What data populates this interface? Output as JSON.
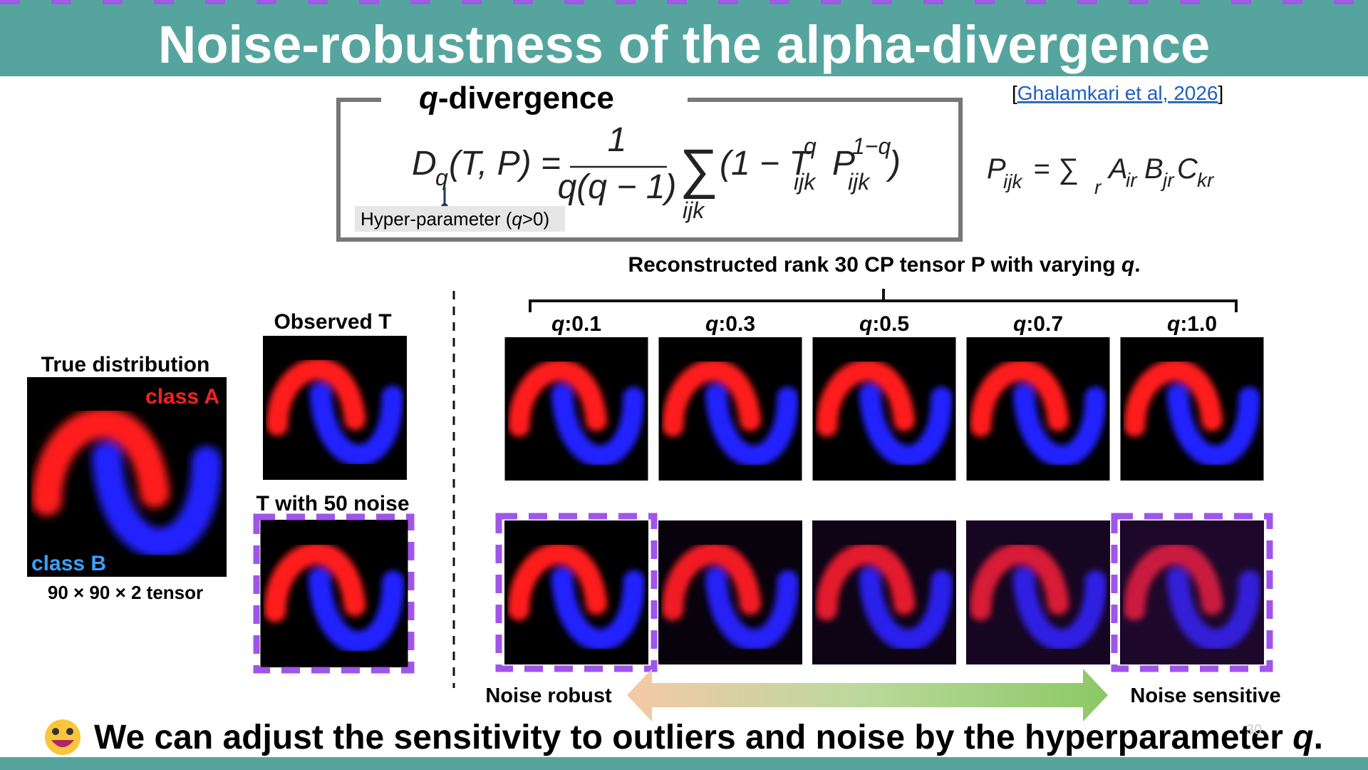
{
  "header": {
    "title": "Noise-robustness of the alpha-divergence"
  },
  "citation": {
    "open": "[",
    "text": "Ghalamkari et al, 2026",
    "close": "]"
  },
  "heading": {
    "var": "q",
    "rest": "-divergence"
  },
  "formula": {
    "lhs": [
      "D",
      "q",
      "(T, P) ="
    ],
    "numerator": "1",
    "denominator": "q(q − 1)",
    "sum": "∑",
    "sum_index": "ijk",
    "body": [
      "(1 − T",
      "q",
      "ijk",
      "P",
      "1−q",
      "ijk",
      ")"
    ]
  },
  "cp_formula": [
    "P",
    "ijk",
    "= ∑",
    "r",
    "A",
    "ir",
    "B",
    "jr",
    "C",
    "kr"
  ],
  "hyper_parameter": {
    "prefix": "Hyper-parameter (",
    "var": "q",
    "suffix": ">0)"
  },
  "reconstructed": {
    "prefix": "Reconstructed rank 30 CP tensor P with varying ",
    "var": "q",
    "suffix": "."
  },
  "panel_var": "q",
  "panels": [
    ":0.1",
    ":0.3",
    ":0.5",
    ":0.7",
    ":1.0"
  ],
  "true_distribution": {
    "title": "True distribution",
    "class_a": "class A",
    "class_b": "class B",
    "shape": "90 × 90 × 2 tensor"
  },
  "observed": "Observed T",
  "noisy": "T with 50 noise",
  "noise_robust": "Noise robust",
  "noise_sensitive": "Noise sensitive",
  "footer": {
    "prefix": "We can adjust the sensitivity to outliers and noise by the hyperparameter ",
    "var": "q",
    "suffix": "."
  },
  "slide_number": "30"
}
